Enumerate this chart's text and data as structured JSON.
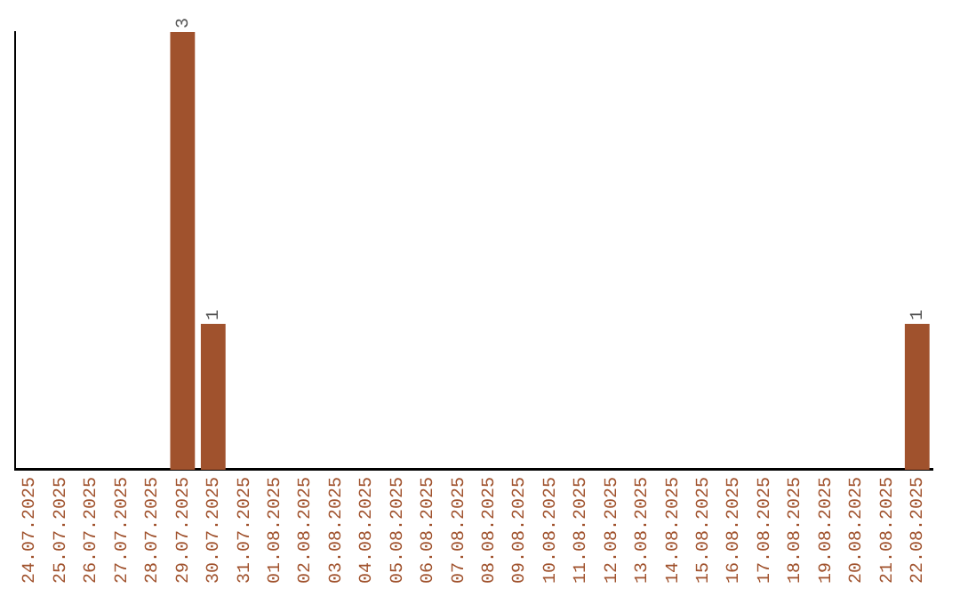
{
  "chart_data": {
    "type": "bar",
    "categories": [
      "24.07.2025",
      "25.07.2025",
      "26.07.2025",
      "27.07.2025",
      "28.07.2025",
      "29.07.2025",
      "30.07.2025",
      "31.07.2025",
      "01.08.2025",
      "02.08.2025",
      "03.08.2025",
      "04.08.2025",
      "05.08.2025",
      "06.08.2025",
      "07.08.2025",
      "08.08.2025",
      "09.08.2025",
      "10.08.2025",
      "11.08.2025",
      "12.08.2025",
      "13.08.2025",
      "14.08.2025",
      "15.08.2025",
      "16.08.2025",
      "17.08.2025",
      "18.08.2025",
      "19.08.2025",
      "20.08.2025",
      "21.08.2025",
      "22.08.2025"
    ],
    "values": [
      0,
      0,
      0,
      0,
      0,
      3,
      1,
      0,
      0,
      0,
      0,
      0,
      0,
      0,
      0,
      0,
      0,
      0,
      0,
      0,
      0,
      0,
      0,
      0,
      0,
      0,
      0,
      0,
      0,
      1
    ],
    "value_labels": [
      null,
      null,
      null,
      null,
      null,
      "3",
      "1",
      null,
      null,
      null,
      null,
      null,
      null,
      null,
      null,
      null,
      null,
      null,
      null,
      null,
      null,
      null,
      null,
      null,
      null,
      null,
      null,
      null,
      null,
      "1"
    ],
    "color": "#a0522d",
    "grid": false,
    "legend": false,
    "tick_labels": "x"
  }
}
